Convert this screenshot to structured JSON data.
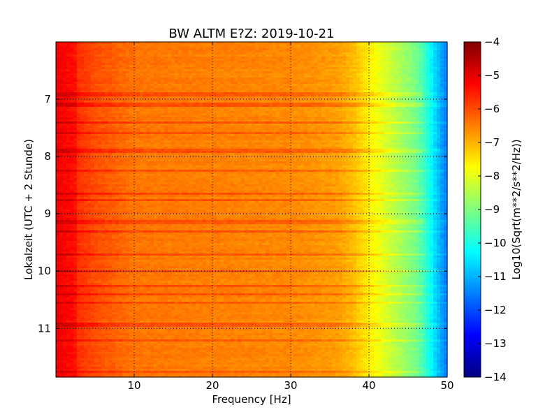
{
  "chart_data": {
    "type": "heatmap",
    "title": "BW ALTM E?Z: 2019-10-21",
    "xlabel": "Frequency [Hz]",
    "ylabel": "Lokalzeit (UTC + 2 Stunde)",
    "xlim": [
      0,
      50
    ],
    "ylim": [
      11.85,
      6.0
    ],
    "y_inverted": true,
    "x_ticks": [
      10,
      20,
      30,
      40,
      50
    ],
    "y_ticks": [
      7,
      8,
      9,
      10,
      11
    ],
    "grid": true,
    "colormap": "jet",
    "colorbar": {
      "label": "Log10(Sqrt(m**2/s**2/Hz))",
      "range": [
        -14,
        -4
      ],
      "ticks": [
        -4,
        -5,
        -6,
        -7,
        -8,
        -9,
        -10,
        -11,
        -12,
        -13,
        -14
      ]
    },
    "spectrum_profile": {
      "frequency_hz": [
        0,
        2,
        5,
        10,
        20,
        30,
        36,
        38,
        40,
        42,
        44,
        46,
        47,
        48,
        49,
        50
      ],
      "level": [
        -5.4,
        -5.6,
        -6.0,
        -6.4,
        -6.5,
        -6.6,
        -6.8,
        -7.1,
        -7.6,
        -8.1,
        -8.6,
        -9.1,
        -9.6,
        -10.3,
        -11.0,
        -11.6
      ]
    },
    "bright_bands_time_h": [
      6.92,
      7.1,
      7.4,
      7.6,
      7.9,
      8.25,
      8.65,
      8.75,
      9.15,
      9.3,
      9.7,
      10.0,
      10.25,
      10.4,
      10.55,
      10.93,
      11.2,
      11.75
    ],
    "colors": {
      "jet_stops": [
        "#00007f",
        "#0000ff",
        "#007fff",
        "#00ffff",
        "#7fff7f",
        "#ffff00",
        "#ff7f00",
        "#ff0000",
        "#7f0000"
      ]
    }
  }
}
